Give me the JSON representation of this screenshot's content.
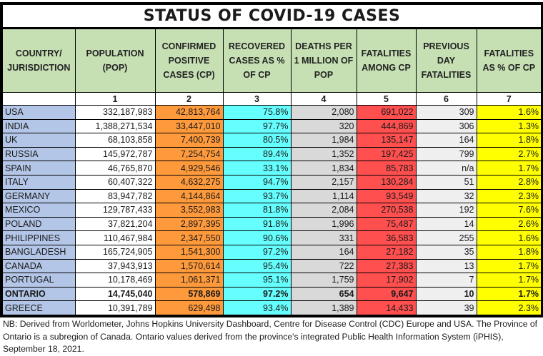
{
  "title": "STATUS OF COVID-19 CASES",
  "columns": [
    {
      "label": "COUNTRY/ JURISDICTION",
      "number": ""
    },
    {
      "label": "POPULATION (POP)",
      "number": "1"
    },
    {
      "label": "CONFIRMED POSITIVE CASES (CP)",
      "number": "2"
    },
    {
      "label": "RECOVERED CASES AS % OF CP",
      "number": "3"
    },
    {
      "label": "DEATHS PER 1 MILLION OF POP",
      "number": "4"
    },
    {
      "label": "FATALITIES AMONG CP",
      "number": "5"
    },
    {
      "label": "PREVIOUS DAY FATALITIES",
      "number": "6"
    },
    {
      "label": "FATALITIES AS % OF CP",
      "number": "7"
    }
  ],
  "column_colors": [
    "#b4c6e7",
    "#ffffff",
    "#ff9a3c",
    "#66ffff",
    "#d9d9d9",
    "#ff4f4f",
    "#efefef",
    "#ffff00"
  ],
  "header_color": "#c6e0b4",
  "rows": [
    [
      "USA",
      "332,187,983",
      "42,813,764",
      "75.8%",
      "2,080",
      "691,022",
      "309",
      "1.6%"
    ],
    [
      "INDIA",
      "1,388,271,534",
      "33,447,010",
      "97.7%",
      "320",
      "444,869",
      "306",
      "1.3%"
    ],
    [
      "UK",
      "68,103,858",
      "7,400,739",
      "80.5%",
      "1,984",
      "135,147",
      "164",
      "1.8%"
    ],
    [
      "RUSSIA",
      "145,972,787",
      "7,254,754",
      "89.4%",
      "1,352",
      "197,425",
      "799",
      "2.7%"
    ],
    [
      "SPAIN",
      "46,765,870",
      "4,929,546",
      "33.1%",
      "1,834",
      "85,783",
      "n/a",
      "1.7%"
    ],
    [
      "ITALY",
      "60,407,322",
      "4,632,275",
      "94.7%",
      "2,157",
      "130,284",
      "51",
      "2.8%"
    ],
    [
      "GERMANY",
      "83,947,782",
      "4,144,864",
      "93.7%",
      "1,114",
      "93,549",
      "32",
      "2.3%"
    ],
    [
      "MEXICO",
      "129,787,433",
      "3,552,983",
      "81.8%",
      "2,084",
      "270,538",
      "192",
      "7.6%"
    ],
    [
      "POLAND",
      "37,821,204",
      "2,897,395",
      "91.8%",
      "1,996",
      "75,487",
      "14",
      "2.6%"
    ],
    [
      "PHILIPPINES",
      "110,467,984",
      "2,347,550",
      "90.6%",
      "331",
      "36,583",
      "255",
      "1.6%"
    ],
    [
      "BANGLADESH",
      "165,724,905",
      "1,541,300",
      "97.2%",
      "164",
      "27,182",
      "35",
      "1.8%"
    ],
    [
      "CANADA",
      "37,943,913",
      "1,570,614",
      "95.4%",
      "722",
      "27,383",
      "13",
      "1.7%"
    ],
    [
      "PORTUGAL",
      "10,178,469",
      "1,061,371",
      "95.1%",
      "1,759",
      "17,902",
      "7",
      "1.7%"
    ],
    [
      "ONTARIO",
      "14,745,040",
      "578,869",
      "97.2%",
      "654",
      "9,647",
      "10",
      "1.7%"
    ],
    [
      "GREECE",
      "10,391,789",
      "629,498",
      "93.4%",
      "1,389",
      "14,433",
      "39",
      "2.3%"
    ]
  ],
  "bold_rows": [
    "ONTARIO"
  ],
  "note": "NB: Derived from Worldometer, Johns Hopkins University Dashboard, Centre for Disease Control (CDC) Europe and USA. The Province of Ontario is a subregion of Canada. Ontario values derived from the province's integrated Public Health Information System (iPHIS), September 18, 2021."
}
